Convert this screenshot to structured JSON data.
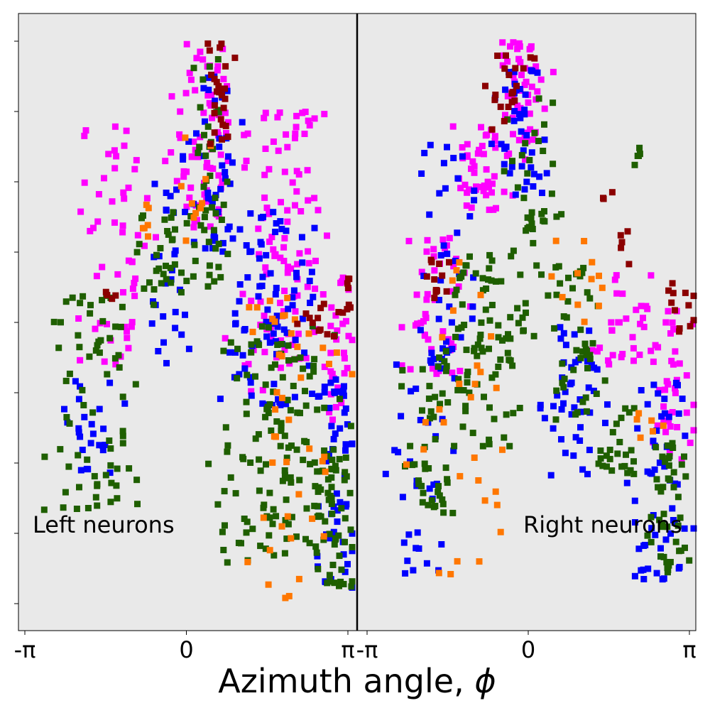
{
  "chart_data": {
    "type": "scatter",
    "title": "",
    "xlabel_prefix": "Azimuth angle, ",
    "xlabel_symbol": "ϕ",
    "ylabel": "",
    "y_ticks_labeled": false,
    "grid": false,
    "background": "#e9e9e9",
    "divider": "vertical black line between the two panels",
    "marker": "square",
    "series_colors": [
      "#ff00ff",
      "#0000ff",
      "#1f5f00",
      "#ff7700",
      "#8b0000"
    ],
    "panels": [
      {
        "name": "left",
        "annotation": "Left neurons",
        "xlim": [
          -3.1416,
          3.1416
        ],
        "x_tick_values": [
          -3.1416,
          0,
          3.1416
        ],
        "x_tick_labels": [
          "-π",
          "0",
          "π"
        ],
        "clusters": [
          {
            "color": "#ff00ff",
            "x_center": 0.3,
            "y_top": 8.0,
            "y_bottom": 5.3,
            "x_spread": 0.45,
            "count": 70
          },
          {
            "color": "#ff00ff",
            "x_center": -1.3,
            "y_top": 6.8,
            "y_bottom": 3.4,
            "x_spread": 0.55,
            "count": 55
          },
          {
            "color": "#ff00ff",
            "x_center": 1.8,
            "y_top": 7.0,
            "y_bottom": 3.0,
            "x_spread": 0.75,
            "count": 110
          },
          {
            "color": "#ff00ff",
            "x_center": 2.95,
            "y_top": 4.7,
            "y_bottom": 2.6,
            "x_spread": 0.25,
            "count": 30
          },
          {
            "color": "#0000ff",
            "x_center": 0.55,
            "y_top": 7.5,
            "y_bottom": 5.0,
            "x_spread": 0.35,
            "count": 40
          },
          {
            "color": "#0000ff",
            "x_center": -0.3,
            "y_top": 6.4,
            "y_bottom": 3.4,
            "x_spread": 0.35,
            "count": 30
          },
          {
            "color": "#0000ff",
            "x_center": 1.6,
            "y_top": 5.6,
            "y_bottom": 2.8,
            "x_spread": 0.75,
            "count": 90
          },
          {
            "color": "#0000ff",
            "x_center": 2.95,
            "y_top": 3.2,
            "y_bottom": 0.2,
            "x_spread": 0.3,
            "count": 55
          },
          {
            "color": "#0000ff",
            "x_center": -1.8,
            "y_top": 3.2,
            "y_bottom": 1.8,
            "x_spread": 0.5,
            "count": 25
          },
          {
            "color": "#1f5f00",
            "x_center": 0.45,
            "y_top": 7.8,
            "y_bottom": 4.5,
            "x_spread": 0.35,
            "count": 45
          },
          {
            "color": "#1f5f00",
            "x_center": -0.5,
            "y_top": 5.6,
            "y_bottom": 4.2,
            "x_spread": 0.35,
            "count": 30
          },
          {
            "color": "#1f5f00",
            "x_center": -1.7,
            "y_top": 4.5,
            "y_bottom": 1.3,
            "x_spread": 0.8,
            "count": 70
          },
          {
            "color": "#1f5f00",
            "x_center": 1.8,
            "y_top": 4.0,
            "y_bottom": 0.5,
            "x_spread": 0.95,
            "count": 130
          },
          {
            "color": "#1f5f00",
            "x_center": 2.9,
            "y_top": 2.2,
            "y_bottom": 0.2,
            "x_spread": 0.35,
            "count": 55
          },
          {
            "color": "#ff7700",
            "x_center": 0.2,
            "y_top": 7.4,
            "y_bottom": 5.0,
            "x_spread": 0.35,
            "count": 10
          },
          {
            "color": "#ff7700",
            "x_center": -0.7,
            "y_top": 5.8,
            "y_bottom": 5.2,
            "x_spread": 0.2,
            "count": 6
          },
          {
            "color": "#ff7700",
            "x_center": 2.0,
            "y_top": 4.5,
            "y_bottom": 0.0,
            "x_spread": 0.9,
            "count": 45
          },
          {
            "color": "#8b0000",
            "x_center": 0.7,
            "y_top": 8.0,
            "y_bottom": 6.5,
            "x_spread": 0.25,
            "count": 25
          },
          {
            "color": "#8b0000",
            "x_center": 2.6,
            "y_top": 4.3,
            "y_bottom": 3.8,
            "x_spread": 0.3,
            "count": 12
          },
          {
            "color": "#8b0000",
            "x_center": 3.1,
            "y_top": 4.7,
            "y_bottom": 4.0,
            "x_spread": 0.1,
            "count": 8
          },
          {
            "color": "#8b0000",
            "x_center": -1.5,
            "y_top": 4.7,
            "y_bottom": 4.3,
            "x_spread": 0.15,
            "count": 4
          }
        ]
      },
      {
        "name": "right",
        "annotation": "Right neurons",
        "xlim": [
          -3.1416,
          3.1416
        ],
        "x_tick_values": [
          -3.1416,
          0,
          3.1416
        ],
        "x_tick_labels": [
          "-π",
          "0",
          "π"
        ],
        "clusters": [
          {
            "color": "#ff00ff",
            "x_center": -0.15,
            "y_top": 8.0,
            "y_bottom": 6.3,
            "x_spread": 0.4,
            "count": 55
          },
          {
            "color": "#ff00ff",
            "x_center": -1.0,
            "y_top": 6.8,
            "y_bottom": 5.6,
            "x_spread": 0.45,
            "count": 45
          },
          {
            "color": "#ff00ff",
            "x_center": -1.8,
            "y_top": 5.2,
            "y_bottom": 3.2,
            "x_spread": 0.5,
            "count": 45
          },
          {
            "color": "#ff00ff",
            "x_center": 1.8,
            "y_top": 4.7,
            "y_bottom": 3.4,
            "x_spread": 0.5,
            "count": 30
          },
          {
            "color": "#ff00ff",
            "x_center": 2.75,
            "y_top": 4.2,
            "y_bottom": 2.0,
            "x_spread": 0.4,
            "count": 40
          },
          {
            "color": "#0000ff",
            "x_center": -0.15,
            "y_top": 7.6,
            "y_bottom": 5.8,
            "x_spread": 0.35,
            "count": 40
          },
          {
            "color": "#0000ff",
            "x_center": -1.5,
            "y_top": 6.6,
            "y_bottom": 3.2,
            "x_spread": 0.5,
            "count": 40
          },
          {
            "color": "#0000ff",
            "x_center": -2.1,
            "y_top": 3.6,
            "y_bottom": 0.4,
            "x_spread": 0.5,
            "count": 35
          },
          {
            "color": "#0000ff",
            "x_center": 0.9,
            "y_top": 4.0,
            "y_bottom": 1.8,
            "x_spread": 0.55,
            "count": 45
          },
          {
            "color": "#0000ff",
            "x_center": 2.5,
            "y_top": 3.2,
            "y_bottom": 0.3,
            "x_spread": 0.55,
            "count": 55
          },
          {
            "color": "#1f5f00",
            "x_center": 0.1,
            "y_top": 7.3,
            "y_bottom": 3.8,
            "x_spread": 0.4,
            "count": 45
          },
          {
            "color": "#1f5f00",
            "x_center": -0.9,
            "y_top": 5.0,
            "y_bottom": 2.2,
            "x_spread": 0.55,
            "count": 80
          },
          {
            "color": "#1f5f00",
            "x_center": -1.9,
            "y_top": 3.5,
            "y_bottom": 1.2,
            "x_spread": 0.5,
            "count": 45
          },
          {
            "color": "#1f5f00",
            "x_center": 0.9,
            "y_top": 4.8,
            "y_bottom": 2.6,
            "x_spread": 0.5,
            "count": 45
          },
          {
            "color": "#1f5f00",
            "x_center": 1.8,
            "y_top": 2.8,
            "y_bottom": 1.8,
            "x_spread": 0.5,
            "count": 25
          },
          {
            "color": "#1f5f00",
            "x_center": 2.8,
            "y_top": 2.3,
            "y_bottom": 0.3,
            "x_spread": 0.35,
            "count": 45
          },
          {
            "color": "#1f5f00",
            "x_center": 2.15,
            "y_top": 6.5,
            "y_bottom": 6.1,
            "x_spread": 0.05,
            "count": 5
          },
          {
            "color": "#ff7700",
            "x_center": -1.2,
            "y_top": 5.0,
            "y_bottom": 0.4,
            "x_spread": 0.7,
            "count": 30
          },
          {
            "color": "#ff7700",
            "x_center": 1.0,
            "y_top": 5.2,
            "y_bottom": 4.0,
            "x_spread": 0.5,
            "count": 12
          },
          {
            "color": "#ff7700",
            "x_center": 2.3,
            "y_top": 2.8,
            "y_bottom": 2.3,
            "x_spread": 0.3,
            "count": 6
          },
          {
            "color": "#8b0000",
            "x_center": -0.35,
            "y_top": 7.8,
            "y_bottom": 6.7,
            "x_spread": 0.35,
            "count": 20
          },
          {
            "color": "#8b0000",
            "x_center": -1.8,
            "y_top": 5.0,
            "y_bottom": 4.2,
            "x_spread": 0.25,
            "count": 12
          },
          {
            "color": "#8b0000",
            "x_center": 1.5,
            "y_top": 5.9,
            "y_bottom": 5.7,
            "x_spread": 0.1,
            "count": 3
          },
          {
            "color": "#8b0000",
            "x_center": 1.9,
            "y_top": 5.4,
            "y_bottom": 4.7,
            "x_spread": 0.2,
            "count": 5
          },
          {
            "color": "#8b0000",
            "x_center": 2.9,
            "y_top": 4.6,
            "y_bottom": 3.8,
            "x_spread": 0.25,
            "count": 12
          }
        ]
      }
    ]
  }
}
